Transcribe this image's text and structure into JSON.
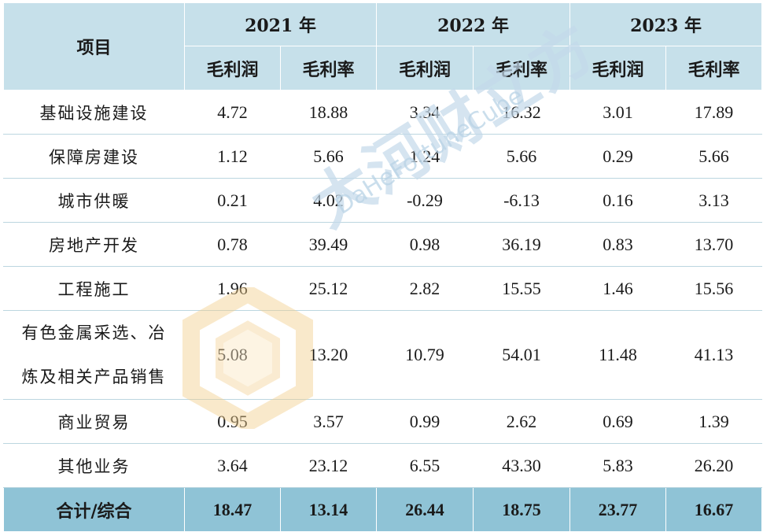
{
  "table": {
    "header_item": "项目",
    "years": [
      "2021 年",
      "2022 年",
      "2023 年"
    ],
    "sub_headers": [
      "毛利润",
      "毛利率",
      "毛利润",
      "毛利率",
      "毛利润",
      "毛利率"
    ],
    "rows": [
      {
        "label": "基础设施建设",
        "values": [
          "4.72",
          "18.88",
          "3.34",
          "16.32",
          "3.01",
          "17.89"
        ]
      },
      {
        "label": "保障房建设",
        "values": [
          "1.12",
          "5.66",
          "1.24",
          "5.66",
          "0.29",
          "5.66"
        ]
      },
      {
        "label": "城市供暖",
        "values": [
          "0.21",
          "4.02",
          "-0.29",
          "-6.13",
          "0.16",
          "3.13"
        ]
      },
      {
        "label": "房地产开发",
        "values": [
          "0.78",
          "39.49",
          "0.98",
          "36.19",
          "0.83",
          "13.70"
        ]
      },
      {
        "label": "工程施工",
        "values": [
          "1.96",
          "25.12",
          "2.82",
          "15.55",
          "1.46",
          "15.56"
        ]
      },
      {
        "label_line1": "有色金属采选、冶",
        "label_line2": "炼及相关产品销售",
        "values": [
          "5.08",
          "13.20",
          "10.79",
          "54.01",
          "11.48",
          "41.13"
        ]
      },
      {
        "label": "商业贸易",
        "values": [
          "0.95",
          "3.57",
          "0.99",
          "2.62",
          "0.69",
          "1.39"
        ]
      },
      {
        "label": "其他业务",
        "values": [
          "3.64",
          "23.12",
          "6.55",
          "43.30",
          "5.83",
          "26.20"
        ]
      }
    ],
    "total": {
      "label": "合计/综合",
      "values": [
        "18.47",
        "13.14",
        "26.44",
        "18.75",
        "23.77",
        "16.67"
      ]
    }
  },
  "watermark": {
    "chinese": "大河财立方",
    "english": "DaHeFortuneCube"
  },
  "colors": {
    "header_bg": "#c6e0ea",
    "total_bg": "#8fc3d6",
    "rule": "#bcd6e0"
  }
}
